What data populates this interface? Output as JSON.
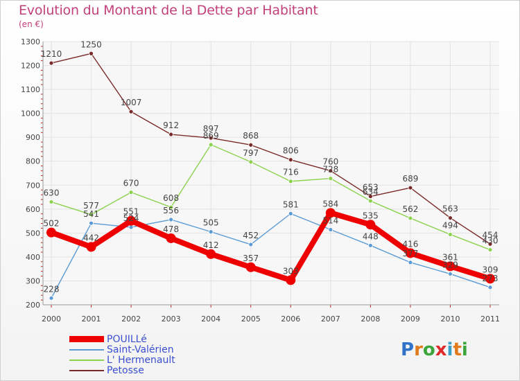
{
  "header": {
    "title": "Evolution du Montant de la Dette par Habitant",
    "subtitle": "(en €)"
  },
  "brand": {
    "logo_text": "Proxiti",
    "letters": [
      {
        "ch": "P",
        "color": "#2f73c9"
      },
      {
        "ch": "r",
        "color": "#e07a1d"
      },
      {
        "ch": "o",
        "color": "#3aa53a"
      },
      {
        "ch": "x",
        "color": "#e02a2a"
      },
      {
        "ch": "i",
        "color": "#3aa0c8"
      },
      {
        "ch": "t",
        "color": "#e07a1d"
      },
      {
        "ch": "i",
        "color": "#3aa53a"
      }
    ]
  },
  "chart_data": {
    "type": "line",
    "title": "Evolution du Montant de la Dette par Habitant",
    "subtitle": "(en €)",
    "xlabel": "",
    "ylabel": "",
    "x": [
      "2000",
      "2001",
      "2002",
      "2003",
      "2004",
      "2005",
      "2006",
      "2007",
      "2008",
      "2009",
      "2010",
      "2011"
    ],
    "ylim": [
      200,
      1300
    ],
    "yticks": [
      "200",
      "300",
      "400",
      "500",
      "600",
      "700",
      "800",
      "900",
      "1000",
      "1100",
      "1200",
      "1300"
    ],
    "grid": true,
    "legend_position": "bottom-left",
    "series": [
      {
        "name": "POUILLé",
        "color": "#ee0000",
        "values": [
          502,
          442,
          551,
          478,
          412,
          357,
          303,
          584,
          535,
          416,
          361,
          309
        ],
        "labels": [
          "502",
          "442",
          "551",
          "478",
          "412",
          "357",
          "303",
          "584",
          "535",
          "416",
          "361",
          "309"
        ]
      },
      {
        "name": "Saint-Valérien",
        "color": "#5a9bd5",
        "values": [
          228,
          541,
          524,
          556,
          505,
          452,
          581,
          514,
          448,
          377,
          329,
          273
        ],
        "labels": [
          "228",
          "541",
          "524",
          "556",
          "505",
          "452",
          "581",
          "514",
          "448",
          "377",
          "329",
          "273"
        ]
      },
      {
        "name": "L' Hermenault",
        "color": "#8cd24f",
        "values": [
          630,
          577,
          670,
          608,
          869,
          797,
          716,
          728,
          634,
          562,
          494,
          430
        ],
        "labels": [
          "630",
          "577",
          "670",
          "608",
          "869",
          "797",
          "716",
          "728",
          "634",
          "562",
          "494",
          "430"
        ]
      },
      {
        "name": "Petosse",
        "color": "#7a2a2a",
        "values": [
          1210,
          1250,
          1007,
          912,
          897,
          868,
          806,
          760,
          653,
          689,
          563,
          454
        ],
        "labels": [
          "1210",
          "1250",
          "1007",
          "912",
          "897",
          "868",
          "806",
          "760",
          "653",
          "689",
          "563",
          "454"
        ]
      }
    ]
  }
}
